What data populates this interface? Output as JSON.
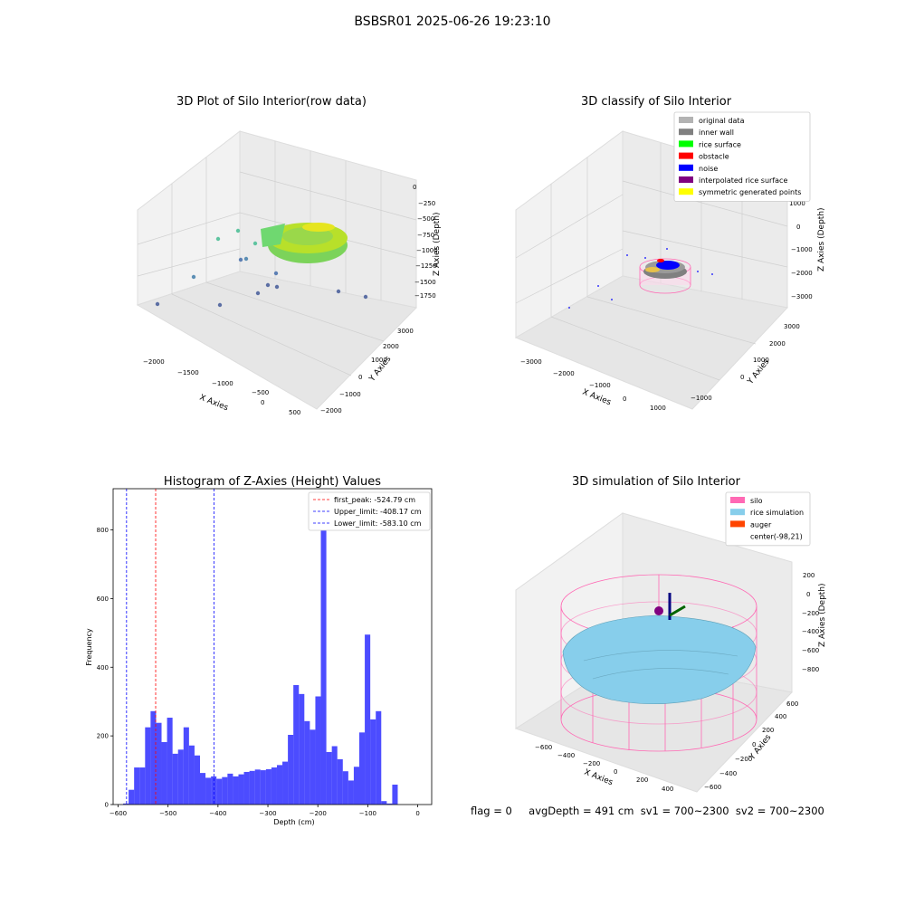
{
  "figure": {
    "title": "BSBSR01 2025-06-26 19:23:10"
  },
  "panels": {
    "raw": {
      "title": "3D Plot of Silo Interior(row data)",
      "xlabel": "X Axies",
      "ylabel": "Y Axies",
      "zlabel": "Z Axies (Depth)",
      "xticks": [
        "−2000",
        "−1500",
        "−1000",
        "−500",
        "0",
        "500"
      ],
      "yticks": [
        "−2000",
        "−1000",
        "0",
        "1000",
        "2000",
        "3000"
      ],
      "zticks": [
        "0",
        "−250",
        "−500",
        "−750",
        "−1000",
        "−1250",
        "−1500",
        "−1750"
      ]
    },
    "classify": {
      "title": "3D classify of Silo Interior",
      "xlabel": "X Axies",
      "ylabel": "Y Axies",
      "zlabel": "Z Axies (Depth)",
      "xticks": [
        "−3000",
        "−2000",
        "−1000",
        "0",
        "1000"
      ],
      "yticks": [
        "−1000",
        "0",
        "1000",
        "2000",
        "3000"
      ],
      "zticks": [
        "1000",
        "0",
        "−1000",
        "−2000",
        "−3000"
      ],
      "legend": [
        {
          "label": "original data",
          "color": "#b3b3b3"
        },
        {
          "label": "inner wall",
          "color": "#808080"
        },
        {
          "label": "rice surface",
          "color": "#00ff00"
        },
        {
          "label": "obstacle",
          "color": "#ff0000"
        },
        {
          "label": "noise",
          "color": "#0000ff"
        },
        {
          "label": "interpolated rice surface",
          "color": "#800080"
        },
        {
          "label": "symmetric generated points",
          "color": "#ffff00"
        }
      ]
    },
    "simulation": {
      "title": "3D simulation of Silo Interior",
      "xlabel": "X Axies",
      "ylabel": "Y Axies",
      "zlabel": "Z Axies (Depth)",
      "xticks": [
        "−600",
        "−400",
        "−200",
        "0",
        "200",
        "400"
      ],
      "yticks": [
        "−600",
        "−400",
        "−200",
        "0",
        "200",
        "400",
        "600"
      ],
      "zticks": [
        "200",
        "0",
        "−200",
        "−400",
        "−600",
        "−800"
      ],
      "legend": [
        {
          "label": "silo",
          "color": "#ff69b4"
        },
        {
          "label": "rice simulation",
          "color": "#87ceeb"
        },
        {
          "label": "auger",
          "color": "#ff4500"
        },
        {
          "label": "center(-98,21)",
          "color": "none"
        }
      ]
    }
  },
  "footer": {
    "flag": "flag = 0",
    "stats": "avgDepth = 491 cm  sv1 = 700~2300  sv2 = 700~2300"
  },
  "chart_data": [
    {
      "type": "bar",
      "title": "Histogram of Z-Axies (Height) Values",
      "xlabel": "Depth (cm)",
      "ylabel": "Frequency",
      "xlim": [
        -610,
        28
      ],
      "ylim": [
        0,
        920
      ],
      "xticks": [
        -600,
        -500,
        -400,
        -300,
        -200,
        -100,
        0
      ],
      "yticks": [
        0,
        200,
        400,
        600,
        800
      ],
      "bar_color": "#0000ff",
      "bin_width": 11,
      "bins": [
        {
          "x": -590,
          "y": 3
        },
        {
          "x": -579,
          "y": 43
        },
        {
          "x": -568,
          "y": 108
        },
        {
          "x": -557,
          "y": 108
        },
        {
          "x": -546,
          "y": 225
        },
        {
          "x": -535,
          "y": 272
        },
        {
          "x": -524,
          "y": 238
        },
        {
          "x": -513,
          "y": 182
        },
        {
          "x": -502,
          "y": 253
        },
        {
          "x": -491,
          "y": 148
        },
        {
          "x": -480,
          "y": 160
        },
        {
          "x": -469,
          "y": 225
        },
        {
          "x": -458,
          "y": 172
        },
        {
          "x": -447,
          "y": 143
        },
        {
          "x": -436,
          "y": 92
        },
        {
          "x": -425,
          "y": 78
        },
        {
          "x": -414,
          "y": 82
        },
        {
          "x": -403,
          "y": 75
        },
        {
          "x": -392,
          "y": 80
        },
        {
          "x": -381,
          "y": 90
        },
        {
          "x": -370,
          "y": 82
        },
        {
          "x": -359,
          "y": 88
        },
        {
          "x": -348,
          "y": 95
        },
        {
          "x": -337,
          "y": 98
        },
        {
          "x": -326,
          "y": 102
        },
        {
          "x": -315,
          "y": 100
        },
        {
          "x": -304,
          "y": 103
        },
        {
          "x": -293,
          "y": 108
        },
        {
          "x": -282,
          "y": 115
        },
        {
          "x": -271,
          "y": 125
        },
        {
          "x": -260,
          "y": 203
        },
        {
          "x": -249,
          "y": 348
        },
        {
          "x": -238,
          "y": 322
        },
        {
          "x": -227,
          "y": 243
        },
        {
          "x": -216,
          "y": 218
        },
        {
          "x": -205,
          "y": 315
        },
        {
          "x": -194,
          "y": 870
        },
        {
          "x": -183,
          "y": 153
        },
        {
          "x": -172,
          "y": 170
        },
        {
          "x": -161,
          "y": 132
        },
        {
          "x": -150,
          "y": 97
        },
        {
          "x": -139,
          "y": 70
        },
        {
          "x": -128,
          "y": 110
        },
        {
          "x": -117,
          "y": 210
        },
        {
          "x": -106,
          "y": 495
        },
        {
          "x": -95,
          "y": 248
        },
        {
          "x": -84,
          "y": 272
        },
        {
          "x": -73,
          "y": 10
        },
        {
          "x": -62,
          "y": 3
        },
        {
          "x": -51,
          "y": 58
        }
      ],
      "vlines": [
        {
          "name": "first_peak: -524.79 cm",
          "x": -524.79,
          "color": "#ff0000"
        },
        {
          "name": "Upper_limit: -408.17 cm",
          "x": -408.17,
          "color": "#0000ff"
        },
        {
          "name": "Lower_limit: -583.10 cm",
          "x": -583.1,
          "color": "#0000ff"
        }
      ],
      "legend_position": "upper right"
    }
  ]
}
